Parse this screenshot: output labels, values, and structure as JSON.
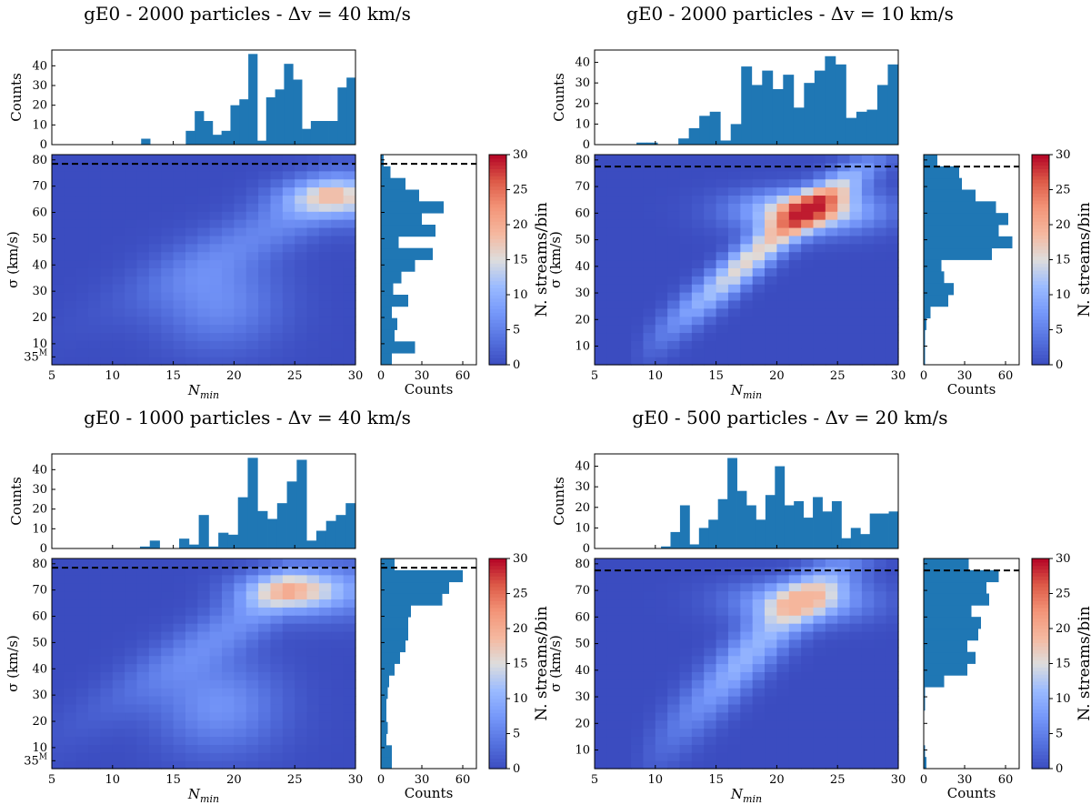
{
  "colors": {
    "bar": "#1f77b4",
    "dashed_line": "#000000",
    "colormap": "coolwarm"
  },
  "chart_data": [
    {
      "type": "heatmap",
      "title": "gE0 - 2000 particles - Δv = 40 km/s",
      "xlabel": "N",
      "xlabel_sub": "min",
      "ylabel": "σ (km/s)",
      "xlim": [
        5,
        30
      ],
      "ylim": [
        2,
        82
      ],
      "xticks": [
        5,
        10,
        15,
        20,
        25,
        30
      ],
      "xtick_labels": [
        "5",
        "10",
        "15",
        "20",
        "25",
        "30"
      ],
      "yticks": [
        10,
        20,
        30,
        40,
        50,
        60,
        70,
        80
      ],
      "ytick_labels": [
        "10",
        "20",
        "30",
        "40",
        "50",
        "60",
        "70",
        "80"
      ],
      "extra_ytick": {
        "value": 5,
        "base": "35",
        "sup": "M"
      },
      "dashed_sigma": 78.5,
      "heatmap_peak": {
        "Nmin": 28,
        "sigma": 66,
        "max": 18
      },
      "colorbar": {
        "label": "N. streams/bin",
        "range": [
          0,
          30
        ],
        "ticks": [
          0,
          5,
          10,
          15,
          20,
          25,
          30
        ]
      },
      "top_hist": {
        "ylabel": "Counts",
        "ylim": [
          0,
          48
        ],
        "yticks": [
          0,
          10,
          20,
          30,
          40
        ],
        "values": [
          0,
          0,
          0,
          0,
          0,
          0,
          0,
          0,
          0,
          0,
          3,
          0,
          0,
          0,
          0,
          7,
          17,
          12,
          5,
          7,
          20,
          23,
          46,
          2,
          24,
          28,
          41,
          33,
          8,
          12,
          12,
          12,
          29,
          34
        ]
      },
      "side_hist": {
        "xlabel": "Counts",
        "xlim": [
          0,
          70
        ],
        "xticks": [
          0,
          30,
          60
        ],
        "values": [
          8,
          25,
          10,
          12,
          8,
          20,
          9,
          15,
          25,
          38,
          13,
          40,
          30,
          46,
          28,
          18,
          7,
          2
        ]
      }
    },
    {
      "type": "heatmap",
      "title": "gE0 - 2000 particles - Δv = 10 km/s",
      "xlabel": "N",
      "xlabel_sub": "min",
      "ylabel": "σ (km/s)",
      "xlim": [
        5,
        30
      ],
      "ylim": [
        3,
        82
      ],
      "xticks": [
        5,
        10,
        15,
        20,
        25,
        30
      ],
      "xtick_labels": [
        "5",
        "10",
        "15",
        "20",
        "25",
        "30"
      ],
      "yticks": [
        10,
        20,
        30,
        40,
        50,
        60,
        70,
        80
      ],
      "ytick_labels": [
        "10",
        "20",
        "30",
        "40",
        "50",
        "60",
        "70",
        "80"
      ],
      "extra_ytick": null,
      "dashed_sigma": 77.5,
      "heatmap_peak": {
        "Nmin": 22.5,
        "sigma": 61,
        "max": 29
      },
      "colorbar": {
        "label": "N. streams/bin",
        "range": [
          0,
          30
        ],
        "ticks": [
          0,
          5,
          10,
          15,
          20,
          25,
          30
        ]
      },
      "top_hist": {
        "ylabel": "Counts",
        "ylim": [
          0,
          46
        ],
        "yticks": [
          0,
          10,
          20,
          30,
          40
        ],
        "values": [
          0,
          0,
          0,
          0,
          1,
          1,
          0,
          0,
          3,
          8,
          14,
          16,
          2,
          10,
          38,
          29,
          36,
          27,
          34,
          18,
          30,
          36,
          43,
          39,
          13,
          16,
          17,
          29,
          39
        ]
      },
      "side_hist": {
        "xlabel": "Counts",
        "xlim": [
          0,
          70
        ],
        "xticks": [
          0,
          30,
          60
        ],
        "values": [
          1,
          1,
          1,
          2,
          5,
          18,
          22,
          15,
          13,
          50,
          65,
          55,
          62,
          53,
          38,
          28,
          26,
          10
        ]
      }
    },
    {
      "type": "heatmap",
      "title": "gE0 - 1000 particles - Δv = 40 km/s",
      "xlabel": "N",
      "xlabel_sub": "min",
      "ylabel": "σ (km/s)",
      "xlim": [
        5,
        30
      ],
      "ylim": [
        2,
        82
      ],
      "xticks": [
        5,
        10,
        15,
        20,
        25,
        30
      ],
      "xtick_labels": [
        "5",
        "10",
        "15",
        "20",
        "25",
        "30"
      ],
      "yticks": [
        10,
        20,
        30,
        40,
        50,
        60,
        70,
        80
      ],
      "ytick_labels": [
        "10",
        "20",
        "30",
        "40",
        "50",
        "60",
        "70",
        "80"
      ],
      "extra_ytick": {
        "value": 5,
        "base": "35",
        "sup": "M"
      },
      "dashed_sigma": 78.5,
      "heatmap_peak": {
        "Nmin": 24.5,
        "sigma": 70,
        "max": 20
      },
      "colorbar": {
        "label": "N. streams/bin",
        "range": [
          0,
          30
        ],
        "ticks": [
          0,
          5,
          10,
          15,
          20,
          25,
          30
        ]
      },
      "top_hist": {
        "ylabel": "Counts",
        "ylim": [
          0,
          48
        ],
        "yticks": [
          0,
          10,
          20,
          30,
          40
        ],
        "values": [
          0,
          0,
          0,
          0,
          0,
          0,
          0,
          0,
          0,
          1,
          4,
          0,
          0,
          5,
          2,
          17,
          1,
          8,
          7,
          26,
          46,
          19,
          15,
          23,
          34,
          45,
          4,
          9,
          14,
          17,
          23
        ]
      },
      "side_hist": {
        "xlabel": "Counts",
        "xlim": [
          0,
          70
        ],
        "xticks": [
          0,
          30,
          60
        ],
        "values": [
          8,
          8,
          4,
          5,
          4,
          4,
          5,
          6,
          10,
          14,
          18,
          20,
          20,
          22,
          45,
          50,
          60,
          10
        ]
      }
    },
    {
      "type": "heatmap",
      "title": "gE0 - 500 particles - Δv = 20 km/s",
      "xlabel": "N",
      "xlabel_sub": "min",
      "ylabel": "σ (km/s)",
      "xlim": [
        5,
        30
      ],
      "ylim": [
        3,
        82
      ],
      "xticks": [
        5,
        10,
        15,
        20,
        25,
        30
      ],
      "xtick_labels": [
        "5",
        "10",
        "15",
        "20",
        "25",
        "30"
      ],
      "yticks": [
        10,
        20,
        30,
        40,
        50,
        60,
        70,
        80
      ],
      "ytick_labels": [
        "10",
        "20",
        "30",
        "40",
        "50",
        "60",
        "70",
        "80"
      ],
      "extra_ytick": null,
      "dashed_sigma": 77.5,
      "heatmap_peak": {
        "Nmin": 22,
        "sigma": 66,
        "max": 19
      },
      "colorbar": {
        "label": "N. streams/bin",
        "range": [
          0,
          30
        ],
        "ticks": [
          0,
          5,
          10,
          15,
          20,
          25,
          30
        ]
      },
      "top_hist": {
        "ylabel": "Counts",
        "ylim": [
          0,
          46
        ],
        "yticks": [
          0,
          10,
          20,
          30,
          40
        ],
        "values": [
          0,
          0,
          0,
          0,
          0,
          0,
          0,
          1,
          8,
          21,
          2,
          10,
          14,
          24,
          44,
          28,
          21,
          14,
          26,
          40,
          21,
          23,
          15,
          25,
          18,
          23,
          5,
          10,
          7,
          17,
          17,
          18
        ]
      },
      "side_hist": {
        "xlabel": "Counts",
        "xlim": [
          0,
          70
        ],
        "xticks": [
          0,
          30,
          60
        ],
        "values": [
          2,
          1,
          0,
          0,
          0,
          1,
          1,
          15,
          32,
          38,
          32,
          40,
          42,
          35,
          48,
          46,
          55,
          33
        ]
      }
    }
  ]
}
